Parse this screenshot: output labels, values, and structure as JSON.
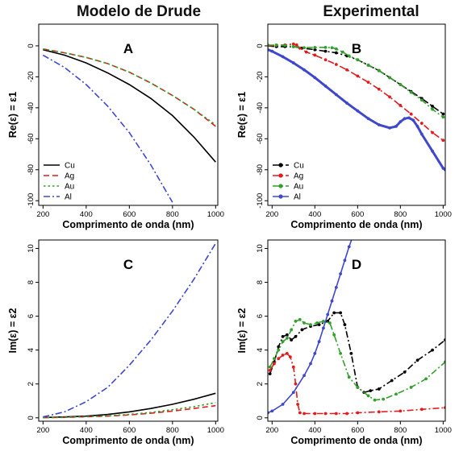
{
  "figure": {
    "left_title": "Modelo de Drude",
    "right_title": "Experimental"
  },
  "chart_data": [
    {
      "panel": "A",
      "type": "line",
      "xlabel": "Comprimento de onda (nm)",
      "ylabel": "Re(ε) = ε1",
      "xlim": [
        180,
        1010
      ],
      "ylim": [
        -103,
        14
      ],
      "xticks": [
        200,
        400,
        600,
        800,
        1000
      ],
      "yticks": [
        0,
        -20,
        -40,
        -60,
        -80,
        -100
      ],
      "legend_position": "bottom-left",
      "series": [
        {
          "name": "Cu",
          "color": "#000000",
          "dash": "solid",
          "markers": false,
          "x": [
            200,
            300,
            400,
            500,
            600,
            700,
            800,
            900,
            1000
          ],
          "y": [
            -2.5,
            -6,
            -11,
            -17.5,
            -25,
            -34,
            -45,
            -59,
            -75
          ]
        },
        {
          "name": "Ag",
          "color": "#e41a1c",
          "dash": "dashed",
          "markers": false,
          "x": [
            200,
            300,
            400,
            500,
            600,
            700,
            800,
            900,
            1000
          ],
          "y": [
            -2,
            -4.5,
            -7.5,
            -11.5,
            -17,
            -24,
            -32,
            -41,
            -52
          ]
        },
        {
          "name": "Au",
          "color": "#33a02c",
          "dash": "dotted",
          "markers": false,
          "x": [
            200,
            300,
            400,
            500,
            600,
            700,
            800,
            900,
            1000
          ],
          "y": [
            -2,
            -4.5,
            -7.5,
            -11.5,
            -17,
            -24,
            -32,
            -41,
            -51
          ]
        },
        {
          "name": "Al",
          "color": "#3f48cc",
          "dash": "dashdot",
          "markers": false,
          "x": [
            200,
            300,
            400,
            500,
            600,
            700,
            800
          ],
          "y": [
            -6,
            -14,
            -25,
            -39,
            -56,
            -77,
            -101
          ]
        }
      ]
    },
    {
      "panel": "B",
      "type": "line",
      "xlabel": "Comprimento de onda (nm)",
      "ylabel": "Re(ε) = ε1",
      "xlim": [
        180,
        1010
      ],
      "ylim": [
        -103,
        14
      ],
      "xticks": [
        200,
        400,
        600,
        800,
        1000
      ],
      "yticks": [
        0,
        -20,
        -40,
        -60,
        -80,
        -100
      ],
      "legend_position": "bottom-left",
      "series": [
        {
          "name": "Cu",
          "color": "#000000",
          "dash": "dashdot",
          "markers": true,
          "x": [
            180,
            220,
            260,
            300,
            340,
            400,
            450,
            500,
            550,
            600,
            650,
            700,
            750,
            800,
            850,
            900,
            950,
            1000
          ],
          "y": [
            0,
            -0.5,
            -0.5,
            -0.5,
            -1.5,
            -2.5,
            -3.5,
            -4.5,
            -6.5,
            -9,
            -12.5,
            -16,
            -20.5,
            -25,
            -29.5,
            -34,
            -39,
            -44
          ]
        },
        {
          "name": "Ag",
          "color": "#e41a1c",
          "dash": "dashdot",
          "markers": true,
          "x": [
            180,
            220,
            260,
            300,
            315,
            330,
            360,
            400,
            450,
            500,
            550,
            600,
            650,
            700,
            750,
            800,
            850,
            900,
            950,
            1000
          ],
          "y": [
            0,
            0.3,
            0.6,
            1.2,
            0.5,
            -1.5,
            -4,
            -6,
            -9,
            -12,
            -15.5,
            -19.5,
            -23.5,
            -28,
            -33,
            -38.5,
            -44,
            -50,
            -56,
            -61
          ]
        },
        {
          "name": "Au",
          "color": "#33a02c",
          "dash": "dashdot",
          "markers": true,
          "x": [
            180,
            220,
            260,
            300,
            350,
            400,
            450,
            480,
            500,
            530,
            560,
            600,
            650,
            700,
            750,
            800,
            850,
            900,
            950,
            1000
          ],
          "y": [
            0.5,
            0.5,
            0.3,
            -0.5,
            -1.2,
            -1,
            -1,
            -1.2,
            -2,
            -4,
            -6.5,
            -9,
            -12.5,
            -16,
            -20.5,
            -25,
            -30,
            -35,
            -41,
            -46
          ]
        },
        {
          "name": "Al",
          "color": "#3f48cc",
          "dash": "solid",
          "markers": true,
          "x": [
            180,
            200,
            250,
            300,
            350,
            400,
            450,
            500,
            550,
            600,
            650,
            700,
            750,
            780,
            800,
            820,
            840,
            860,
            880,
            900,
            950,
            1000,
            1010
          ],
          "y": [
            -2.5,
            -3.5,
            -7,
            -11,
            -15.5,
            -20.5,
            -26,
            -31.5,
            -37,
            -42,
            -47,
            -51,
            -53,
            -52,
            -49,
            -47,
            -46.5,
            -48,
            -52,
            -57,
            -68,
            -79,
            -80
          ]
        }
      ]
    },
    {
      "panel": "C",
      "type": "line",
      "xlabel": "Comprimento de onda (nm)",
      "ylabel": "Im(ε) = ε2",
      "xlim": [
        180,
        1010
      ],
      "ylim": [
        -0.2,
        10.5
      ],
      "xticks": [
        200,
        400,
        600,
        800,
        1000
      ],
      "yticks": [
        0,
        2,
        4,
        6,
        8,
        10
      ],
      "series": [
        {
          "name": "Cu",
          "color": "#000000",
          "dash": "solid",
          "markers": false,
          "x": [
            200,
            300,
            400,
            500,
            600,
            700,
            800,
            900,
            1000
          ],
          "y": [
            0.02,
            0.05,
            0.1,
            0.2,
            0.35,
            0.55,
            0.8,
            1.1,
            1.45
          ]
        },
        {
          "name": "Ag",
          "color": "#e41a1c",
          "dash": "dashed",
          "markers": false,
          "x": [
            200,
            300,
            400,
            500,
            600,
            700,
            800,
            900,
            1000
          ],
          "y": [
            0.01,
            0.03,
            0.06,
            0.1,
            0.17,
            0.27,
            0.4,
            0.55,
            0.72
          ]
        },
        {
          "name": "Au",
          "color": "#33a02c",
          "dash": "dotted",
          "markers": false,
          "x": [
            200,
            300,
            400,
            500,
            600,
            700,
            800,
            900,
            1000
          ],
          "y": [
            0.01,
            0.03,
            0.07,
            0.12,
            0.2,
            0.32,
            0.48,
            0.66,
            0.9
          ]
        },
        {
          "name": "Al",
          "color": "#3f48cc",
          "dash": "dashdot",
          "markers": false,
          "x": [
            200,
            300,
            400,
            500,
            600,
            700,
            800,
            900,
            1000
          ],
          "y": [
            0.05,
            0.35,
            0.95,
            1.8,
            3.1,
            4.6,
            6.3,
            8.2,
            10.3
          ]
        }
      ]
    },
    {
      "panel": "D",
      "type": "line",
      "xlabel": "Comprimento de onda (nm)",
      "ylabel": "Im(ε) = ε2",
      "xlim": [
        180,
        1010
      ],
      "ylim": [
        -0.2,
        10.5
      ],
      "xticks": [
        200,
        400,
        600,
        800,
        1000
      ],
      "yticks": [
        0,
        2,
        4,
        6,
        8,
        10
      ],
      "series": [
        {
          "name": "Cu",
          "color": "#000000",
          "dash": "dashdot",
          "markers": true,
          "x": [
            190,
            210,
            230,
            250,
            270,
            290,
            310,
            340,
            380,
            420,
            460,
            490,
            520,
            540,
            570,
            600,
            630,
            660,
            700,
            760,
            820,
            880,
            950,
            1010
          ],
          "y": [
            2.6,
            3.3,
            4.2,
            4.8,
            4.9,
            4.6,
            4.8,
            5.2,
            5.4,
            5.5,
            5.7,
            6.2,
            6.2,
            5.5,
            3.8,
            1.8,
            1.5,
            1.6,
            1.7,
            2.2,
            2.7,
            3.4,
            4,
            4.6
          ]
        },
        {
          "name": "Ag",
          "color": "#e41a1c",
          "dash": "dashdot",
          "markers": true,
          "x": [
            190,
            210,
            230,
            250,
            270,
            285,
            300,
            310,
            320,
            330,
            350,
            400,
            450,
            500,
            550,
            600,
            700,
            800,
            900,
            1010
          ],
          "y": [
            2.8,
            3.2,
            3.5,
            3.7,
            3.8,
            3.6,
            3,
            2,
            0.8,
            0.3,
            0.25,
            0.25,
            0.25,
            0.25,
            0.25,
            0.3,
            0.35,
            0.4,
            0.5,
            0.6
          ]
        },
        {
          "name": "Au",
          "color": "#33a02c",
          "dash": "dashdot",
          "markers": true,
          "x": [
            190,
            210,
            230,
            250,
            270,
            290,
            310,
            330,
            350,
            380,
            410,
            440,
            470,
            490,
            520,
            560,
            600,
            650,
            680,
            720,
            780,
            850,
            920,
            1010
          ],
          "y": [
            3,
            3.5,
            4,
            4.5,
            4.7,
            5.2,
            5.7,
            5.8,
            5.6,
            5.5,
            5.6,
            5.7,
            5.6,
            4.9,
            3.8,
            2.4,
            1.8,
            1.3,
            1.05,
            1.1,
            1.4,
            1.8,
            2.3,
            3.3
          ]
        },
        {
          "name": "Al",
          "color": "#3f48cc",
          "dash": "solid",
          "markers": true,
          "x": [
            180,
            200,
            250,
            300,
            350,
            380,
            400,
            420,
            440,
            460,
            480,
            500,
            520,
            540,
            560,
            580
          ],
          "y": [
            0.3,
            0.4,
            0.8,
            1.5,
            2.5,
            3.2,
            3.8,
            4.5,
            5.3,
            6.1,
            6.9,
            7.7,
            8.5,
            9.3,
            10.1,
            10.8
          ]
        }
      ]
    }
  ]
}
